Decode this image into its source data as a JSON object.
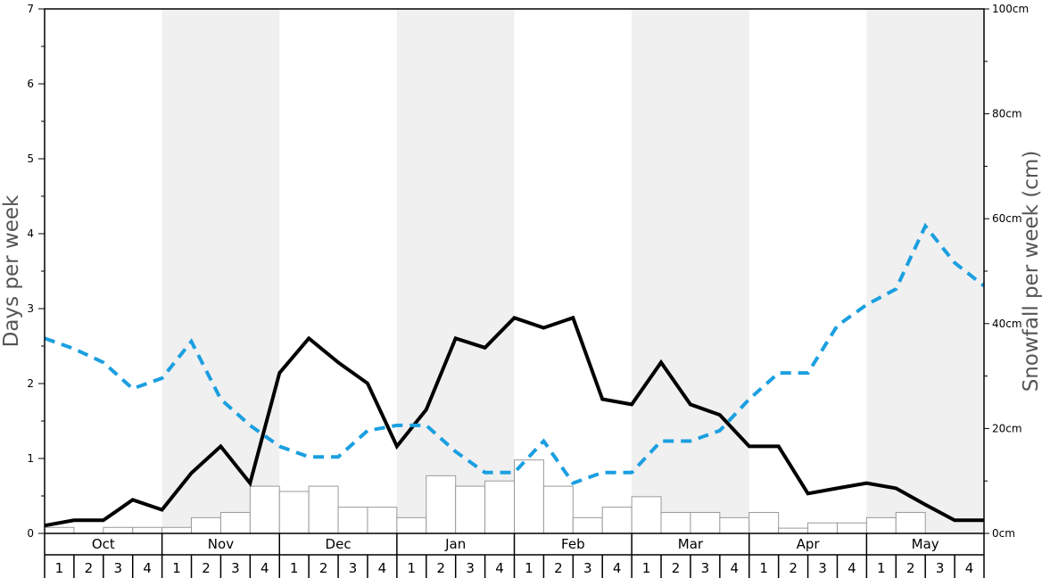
{
  "chart_data": {
    "type": "bar+line",
    "title": "",
    "months": [
      "Oct",
      "Nov",
      "Dec",
      "Jan",
      "Feb",
      "Mar",
      "Apr",
      "May"
    ],
    "weeks_per_month": [
      "1",
      "2",
      "3",
      "4"
    ],
    "left_axis": {
      "label": "Days per week",
      "ylim": [
        0,
        7
      ],
      "ticks": [
        "0",
        "1",
        "2",
        "3",
        "4",
        "5",
        "6",
        "7"
      ]
    },
    "right_axis": {
      "label": "Snowfall per week (cm)",
      "ylim": [
        0,
        100
      ],
      "ticks": [
        "0cm",
        "20cm",
        "40cm",
        "60cm",
        "80cm",
        "100cm"
      ]
    },
    "series": [
      {
        "kind": "bar",
        "axis": "left",
        "values": [
          0.08,
          0.0,
          0.08,
          0.08,
          0.08,
          0.21,
          0.28,
          0.63,
          0.56,
          0.63,
          0.35,
          0.35,
          0.21,
          0.77,
          0.63,
          0.7,
          0.98,
          0.63,
          0.21,
          0.35,
          0.49,
          0.28,
          0.28,
          0.21,
          0.28,
          0.07,
          0.14,
          0.14,
          0.21,
          0.28,
          0.0,
          0.0
        ]
      },
      {
        "kind": "line",
        "axis": "right",
        "style": "solid",
        "color": "#000000",
        "values": [
          1.5,
          2.5,
          2.5,
          6.4,
          4.5,
          11.5,
          16.6,
          9.6,
          30.6,
          37.2,
          32.6,
          28.6,
          16.6,
          23.6,
          37.2,
          35.4,
          41.1,
          39.2,
          41.1,
          25.6,
          24.6,
          32.6,
          24.6,
          22.6,
          16.6,
          16.6,
          7.6,
          8.6,
          9.6,
          8.6,
          5.5,
          2.5,
          2.5
        ]
      },
      {
        "kind": "line",
        "axis": "right",
        "style": "dashed",
        "color": "#1b9fe0",
        "values": [
          37.2,
          35.2,
          32.6,
          27.6,
          29.6,
          36.6,
          25.6,
          20.6,
          16.6,
          14.6,
          14.6,
          19.6,
          20.6,
          20.6,
          15.6,
          11.6,
          11.6,
          17.6,
          9.6,
          11.6,
          11.6,
          17.6,
          17.6,
          19.6,
          25.6,
          30.6,
          30.6,
          39.6,
          43.6,
          46.6,
          58.6,
          51.6,
          47.2
        ]
      }
    ],
    "grid": false,
    "legend": "none",
    "colors": {
      "month_band": "#f0f0f0",
      "bar_fill": "#ffffff",
      "bar_stroke": "#9a9a9a",
      "axis": "#000000",
      "axis_title": "#555555"
    }
  }
}
